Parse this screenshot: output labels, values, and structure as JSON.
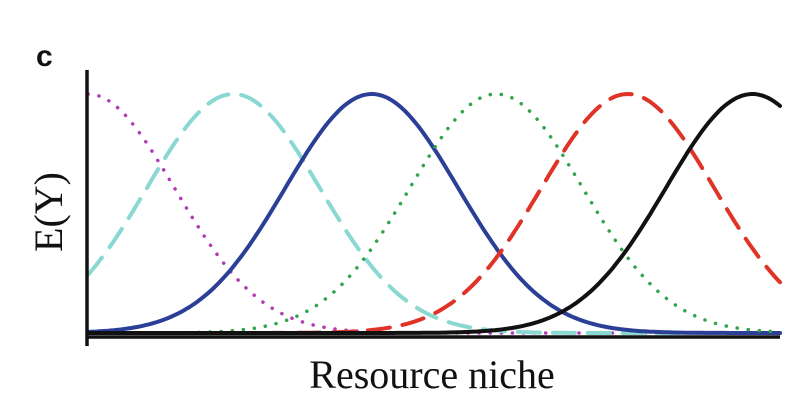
{
  "panel": {
    "label": "c"
  },
  "chart_data": {
    "type": "line",
    "title": "",
    "xlabel": "Resource niche",
    "ylabel": "E(Y)",
    "xlim": [
      0,
      1
    ],
    "ylim": [
      0,
      1
    ],
    "grid": false,
    "legend": "none",
    "series": [
      {
        "style": "dotted",
        "color": "#b03bb5",
        "peak_x": 0.0
      },
      {
        "style": "dashed",
        "color": "#8ad8d2",
        "peak_x": 0.21
      },
      {
        "style": "solid",
        "color": "#2b3f96",
        "peak_x": 0.41
      },
      {
        "style": "dotted",
        "color": "#2fa54b",
        "peak_x": 0.59
      },
      {
        "style": "dashed",
        "color": "#e03327",
        "peak_x": 0.78
      },
      {
        "style": "solid",
        "color": "#111111",
        "peak_x": 0.96
      }
    ],
    "curve_shape": "gaussian",
    "curve_sd": 0.125,
    "curve_peak": 1.0
  }
}
